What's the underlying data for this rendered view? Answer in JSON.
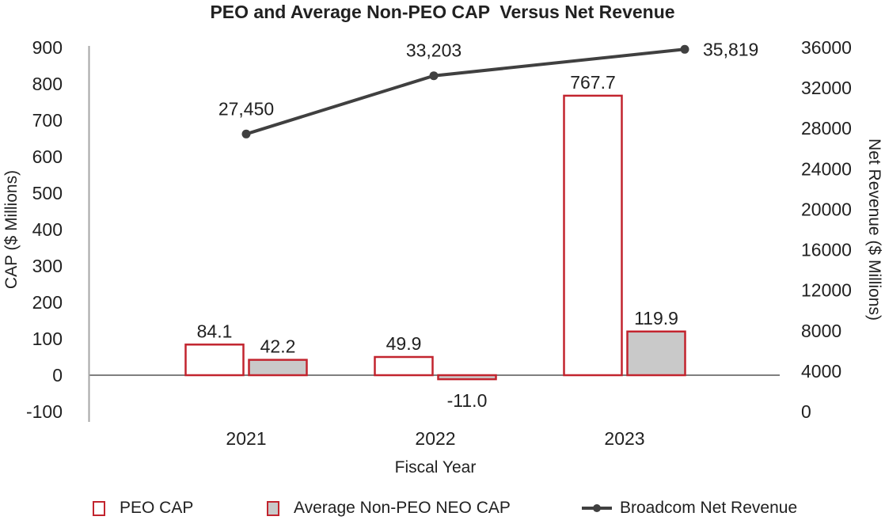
{
  "chart_data": {
    "type": "combo-bar-line",
    "title": "PEO and Average Non-PEO CAP  Versus Net Revenue",
    "categories": [
      "2021",
      "2022",
      "2023"
    ],
    "xlabel": "Fiscal Year",
    "ylabel_left": "CAP ($ Millions)",
    "ylabel_right": "Net Revenue ($ Millions)",
    "left_axis": {
      "min": -100,
      "max": 900,
      "step": 100,
      "ticks": [
        900,
        800,
        700,
        600,
        500,
        400,
        300,
        200,
        100,
        0,
        -100
      ]
    },
    "right_axis": {
      "min": 0,
      "max": 36000,
      "step": 4000,
      "ticks": [
        36000,
        32000,
        28000,
        24000,
        20000,
        16000,
        12000,
        8000,
        4000,
        0
      ]
    },
    "grid": false,
    "legend_position": "bottom",
    "series": [
      {
        "name": "PEO CAP",
        "type": "bar",
        "axis": "left",
        "fill": "#FFFFFF",
        "stroke": "#C2242E",
        "values": [
          84.1,
          49.9,
          767.7
        ],
        "labels": [
          "84.1",
          "49.9",
          "767.7"
        ]
      },
      {
        "name": "Average Non-PEO NEO CAP",
        "type": "bar",
        "axis": "left",
        "fill": "#C9C9C9",
        "stroke": "#C2242E",
        "values": [
          42.2,
          -11.0,
          119.9
        ],
        "labels": [
          "42.2",
          "-11.0",
          "119.9"
        ]
      },
      {
        "name": "Broadcom Net Revenue",
        "type": "line",
        "axis": "right",
        "color": "#404040",
        "values": [
          27450,
          33203,
          35819
        ],
        "labels": [
          "27,450",
          "33,203",
          "35,819"
        ]
      }
    ]
  },
  "legend": {
    "items": [
      {
        "label": "PEO CAP",
        "swatch": "bar-outline"
      },
      {
        "label": "Average Non-PEO NEO CAP",
        "swatch": "bar-filled"
      },
      {
        "label": "Broadcom Net Revenue",
        "swatch": "line-marker"
      }
    ]
  },
  "colors": {
    "bar_stroke": "#C2242E",
    "bar_fill_gray": "#C9C9C9",
    "line": "#404040",
    "axis_line": "#A6A6A6",
    "zero_line": "#7F7F7F",
    "text": "#212121"
  }
}
